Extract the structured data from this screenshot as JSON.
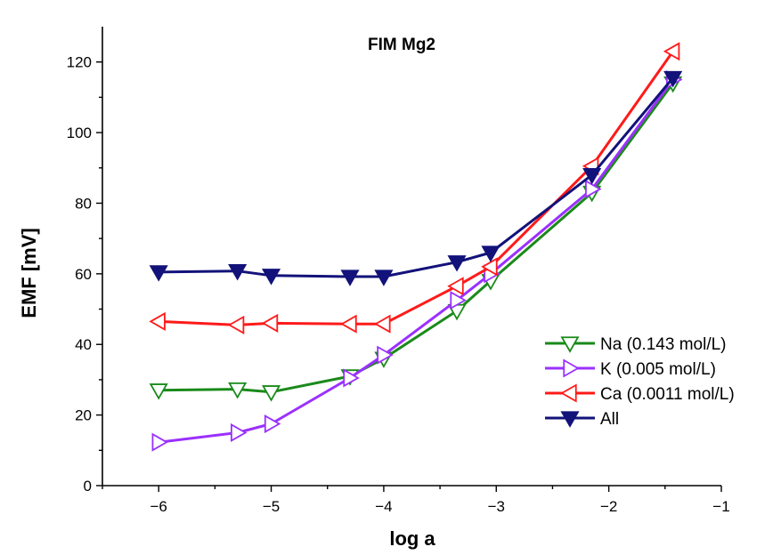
{
  "chart_data": {
    "type": "line",
    "title": "FIM  Mg2",
    "xlabel": "log a",
    "ylabel": "EMF [mV]",
    "xlim": [
      -6.5,
      -1
    ],
    "ylim": [
      0,
      130
    ],
    "xticks": [
      -6,
      -5,
      -4,
      -3,
      -2,
      -1
    ],
    "xtick_labels": [
      "−6",
      "−5",
      "−4",
      "−3",
      "−2",
      "−1"
    ],
    "yticks": [
      0,
      20,
      40,
      60,
      80,
      100,
      120
    ],
    "ytick_labels": [
      "0",
      "20",
      "40",
      "60",
      "80",
      "100",
      "120"
    ],
    "legend_position": "bottom-right",
    "grid": false,
    "series": [
      {
        "name": "Na (0.143 mol/L)",
        "color": "#1a8a1a",
        "marker": "triangle-down-open",
        "x": [
          -6,
          -5.3,
          -5,
          -4.3,
          -4,
          -3.35,
          -3.05,
          -2.15,
          -1.43
        ],
        "y": [
          27,
          27.3,
          26.5,
          31,
          36,
          49.5,
          58,
          83,
          114
        ]
      },
      {
        "name": "K (0.005 mol/L)",
        "color": "#9b30ff",
        "marker": "triangle-right-open",
        "x": [
          -6,
          -5.3,
          -5,
          -4.3,
          -4,
          -3.35,
          -3.05,
          -2.15,
          -1.43
        ],
        "y": [
          12.3,
          15,
          17.5,
          30.5,
          37,
          52.5,
          60,
          84,
          115
        ]
      },
      {
        "name": "Ca (0.0011 mol/L)",
        "color": "#ff1a1a",
        "marker": "triangle-left-open",
        "x": [
          -6,
          -5.3,
          -5,
          -4.3,
          -4,
          -3.35,
          -3.05,
          -2.15,
          -1.43
        ],
        "y": [
          46.5,
          45.5,
          46,
          45.8,
          45.8,
          56.5,
          62,
          90.5,
          123
        ]
      },
      {
        "name": "All",
        "color": "#12127a",
        "marker": "triangle-down-filled",
        "x": [
          -6,
          -5.3,
          -5,
          -4.3,
          -4,
          -3.35,
          -3.05,
          -2.15,
          -1.43
        ],
        "y": [
          60.5,
          60.8,
          59.5,
          59.2,
          59.2,
          63.3,
          66,
          88,
          115.5
        ]
      }
    ]
  }
}
